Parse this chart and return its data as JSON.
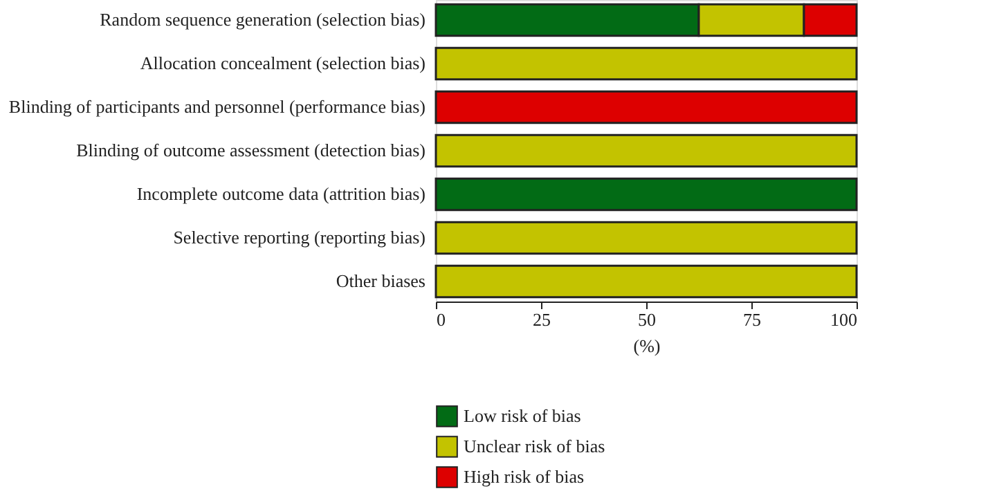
{
  "chart_data": {
    "type": "bar",
    "orientation": "horizontal",
    "stacked": true,
    "xlabel": "(%)",
    "categories": [
      "Random sequence generation (selection bias)",
      "Allocation concealment (selection bias)",
      "Blinding of participants and personnel (performance bias)",
      "Blinding of outcome assessment (detection bias)",
      "Incomplete outcome data (attrition bias)",
      "Selective reporting (reporting bias)",
      "Other biases"
    ],
    "series": [
      {
        "name": "Low risk of bias",
        "color": "#026b15",
        "values": [
          62.5,
          0,
          0,
          0,
          100,
          0,
          0
        ]
      },
      {
        "name": "Unclear risk of bias",
        "color": "#c3c300",
        "values": [
          25,
          100,
          0,
          100,
          0,
          100,
          100
        ]
      },
      {
        "name": "High risk of bias",
        "color": "#dd0000",
        "values": [
          12.5,
          0,
          100,
          0,
          0,
          0,
          0
        ]
      }
    ],
    "xlim": [
      0,
      100
    ],
    "xticks": [
      0,
      25,
      50,
      75,
      100
    ],
    "grid": false,
    "legend": "bottom left"
  }
}
